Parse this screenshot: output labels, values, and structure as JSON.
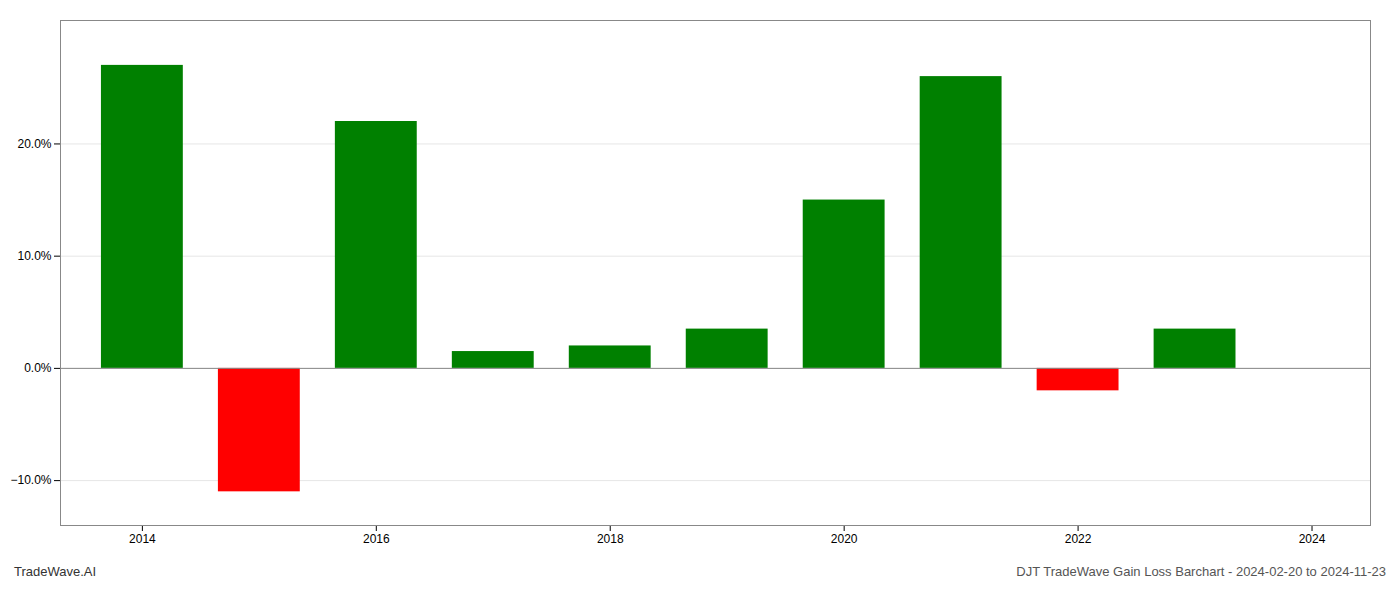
{
  "chart_data": {
    "type": "bar",
    "x": [
      2014,
      2015,
      2016,
      2017,
      2018,
      2019,
      2020,
      2021,
      2022,
      2023
    ],
    "values": [
      27.0,
      -11.0,
      22.0,
      1.5,
      2.0,
      3.5,
      15.0,
      26.0,
      -2.0,
      3.5
    ],
    "colors": [
      "#008000",
      "#ff0000",
      "#008000",
      "#008000",
      "#008000",
      "#008000",
      "#008000",
      "#008000",
      "#ff0000",
      "#008000"
    ],
    "xlim": [
      2013.3,
      2024.5
    ],
    "xticks": [
      2014,
      2016,
      2018,
      2020,
      2022,
      2024
    ],
    "ylim": [
      -14,
      31
    ],
    "yticks": [
      {
        "value": -10.0,
        "label": "−10.0%"
      },
      {
        "value": 0.0,
        "label": "0.0%"
      },
      {
        "value": 10.0,
        "label": "10.0%"
      },
      {
        "value": 20.0,
        "label": "20.0%"
      }
    ],
    "grid": true,
    "annotations": [
      "TradeWave.AI",
      "DJT TradeWave Gain Loss Barchart - 2024-02-20 to 2024-11-23"
    ]
  }
}
